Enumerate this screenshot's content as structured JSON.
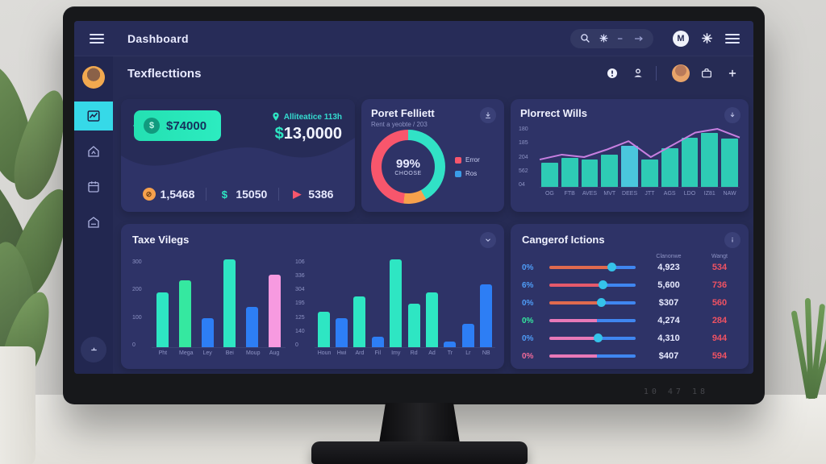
{
  "theme": {
    "screen_bg": "#262b54",
    "card_bg": "#2e3367",
    "teal": "#2ee6c3",
    "blue": "#2d7ef5",
    "pink": "#f79ae0",
    "red": "#f8566c",
    "orange": "#f6a14c",
    "purple_line": "#c77fe0",
    "value_red": "#ef5263",
    "muted": "#8d93c4",
    "active_cyan": "#36d9e8"
  },
  "monitor": {
    "bezel_label": "10 47 18"
  },
  "topbar": {
    "title": "Dashboard",
    "user_initial": "M"
  },
  "header": {
    "title": "Texflecttions"
  },
  "stats_card": {
    "badge_value": "$74000",
    "badge_coin": "$",
    "location_label": "Alliteatice 113h",
    "amount_currency": "$",
    "amount_value": "13,0000",
    "stats": [
      {
        "icon": "coin-icon",
        "glyph": "⊘",
        "icon_bg": "#f6a14c",
        "icon_fg": "#6b3c10",
        "value": "1,5468"
      },
      {
        "icon": "dollar-icon",
        "glyph": "$",
        "icon_bg": "transparent",
        "icon_fg": "#2ee6c3",
        "value": "15050"
      },
      {
        "icon": "flag-icon",
        "glyph": "▶",
        "icon_bg": "transparent",
        "icon_fg": "#f8566c",
        "value": "5386"
      }
    ]
  },
  "donut_card": {
    "title": "Poret Felliett",
    "subtitle": "Rent a yeobte / 203",
    "center_value": "99%",
    "center_label": "CHOOSE",
    "chart": {
      "type": "pie",
      "slices": [
        {
          "label": "Ros",
          "value": 42,
          "color": "#31e2c6"
        },
        {
          "label": "other",
          "value": 10,
          "color": "#f6a14c"
        },
        {
          "label": "Error",
          "value": 48,
          "color": "#f8566c"
        }
      ]
    },
    "legend": [
      {
        "label": "Error",
        "color": "#f8566c"
      },
      {
        "label": "Ros",
        "color": "#3a9de8"
      }
    ]
  },
  "area_card": {
    "title": "Plorrect Wills",
    "chart": {
      "type": "area",
      "y_ticks": [
        "180",
        "185",
        "204",
        "562",
        "04"
      ],
      "x_ticks": [
        "OG",
        "FTB",
        "AVES",
        "MVT",
        "DEES",
        "JTT",
        "AGS",
        "LDO",
        "IZ81",
        "NAW"
      ],
      "bars": [
        40,
        48,
        46,
        54,
        68,
        46,
        64,
        82,
        90,
        80
      ],
      "bar_highlight_index": 4,
      "bar_color": "#2ee6c3",
      "bar_highlight_color": "#4fe0f2",
      "line": [
        46,
        54,
        50,
        62,
        76,
        50,
        70,
        90,
        96,
        82
      ],
      "line_color": "#c77fe0"
    }
  },
  "bars_card": {
    "title": "Taxe Vilegs",
    "left_chart": {
      "type": "bar",
      "y_ticks": [
        "300",
        "200",
        "100",
        "0"
      ],
      "corner_label": "Roda",
      "bars": [
        {
          "label": "Pht",
          "value": 62,
          "color": "#2ee6c3"
        },
        {
          "label": "Mega",
          "value": 76,
          "color": "#35e8a0"
        },
        {
          "label": "Ley",
          "value": 33,
          "color": "#2d7ef5"
        },
        {
          "label": "Bei",
          "value": 100,
          "color": "#2ee6c3"
        },
        {
          "label": "Moup",
          "value": 46,
          "color": "#2d7ef5"
        },
        {
          "label": "Aug",
          "value": 83,
          "color": "#f79ae0"
        }
      ]
    },
    "right_chart": {
      "type": "bar",
      "y_ticks": [
        "106",
        "336",
        "304",
        "195",
        "125",
        "140",
        "0"
      ],
      "bars": [
        {
          "label": "Houn",
          "value": 40,
          "color": "#2ee6c3"
        },
        {
          "label": "Hwi",
          "value": 33,
          "color": "#2d7ef5"
        },
        {
          "label": "Ard",
          "value": 58,
          "color": "#2ee6c3"
        },
        {
          "label": "Fil",
          "value": 12,
          "color": "#2d7ef5"
        },
        {
          "label": "Imy",
          "value": 100,
          "color": "#2ee6c3"
        },
        {
          "label": "Rd",
          "value": 50,
          "color": "#2ee6c3"
        },
        {
          "label": "Ad",
          "value": 62,
          "color": "#2ee6c3"
        },
        {
          "label": "Tr",
          "value": 6,
          "color": "#2d7ef5"
        },
        {
          "label": "Lr",
          "value": 27,
          "color": "#2d7ef5"
        },
        {
          "label": "NB",
          "value": 72,
          "color": "#2d7ef5"
        }
      ]
    }
  },
  "sliders_card": {
    "title": "Cangerof Ictions",
    "columns": [
      "Clanonwe",
      "Wangt"
    ],
    "rows": [
      {
        "percent": "0%",
        "percent_color": "#4f9df8",
        "fill": 72,
        "track_color": "#e06a4e",
        "rest_color": "#3f86f0",
        "thumb": true,
        "thumb_color": "#35c3ea",
        "value": "4,923",
        "weight": "534"
      },
      {
        "percent": "6%",
        "percent_color": "#4f9df8",
        "fill": 62,
        "track_color": "#e55a6b",
        "rest_color": "#3f86f0",
        "thumb": true,
        "thumb_color": "#35c3ea",
        "value": "5,600",
        "weight": "736"
      },
      {
        "percent": "0%",
        "percent_color": "#4f9df8",
        "fill": 60,
        "track_color": "#e06a4e",
        "rest_color": "#3f86f0",
        "thumb": true,
        "thumb_color": "#35c3ea",
        "value": "$307",
        "weight": "560"
      },
      {
        "percent": "0%",
        "percent_color": "#35e8a0",
        "fill": 55,
        "track_color": "#e879b8",
        "rest_color": "#3f86f0",
        "thumb": false,
        "thumb_color": "#35c3ea",
        "value": "4,274",
        "weight": "284"
      },
      {
        "percent": "0%",
        "percent_color": "#4f9df8",
        "fill": 56,
        "track_color": "#e879b8",
        "rest_color": "#3f86f0",
        "thumb": true,
        "thumb_color": "#35c3ea",
        "value": "4,310",
        "weight": "944"
      },
      {
        "percent": "0%",
        "percent_color": "#f06a9a",
        "fill": 55,
        "track_color": "#e879b8",
        "rest_color": "#3f86f0",
        "thumb": false,
        "thumb_color": "#35c3ea",
        "value": "$407",
        "weight": "594"
      }
    ]
  }
}
